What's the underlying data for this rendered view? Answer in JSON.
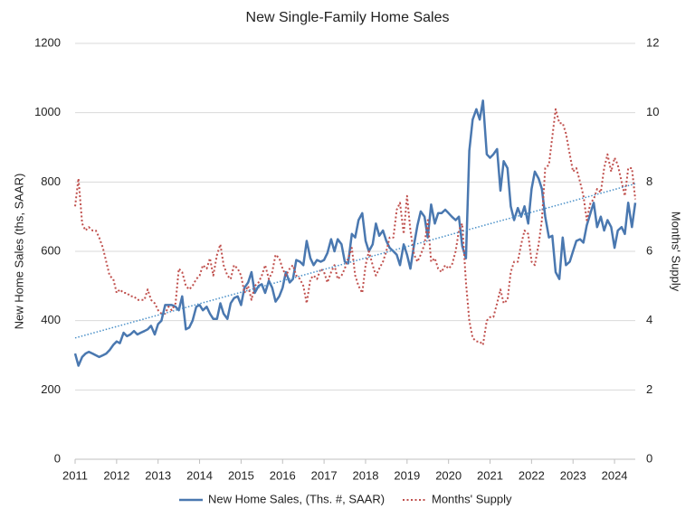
{
  "chart_data": {
    "type": "line",
    "title": "New Single-Family Home Sales",
    "ylabel": "New Home Sales (ths, SAAR)",
    "y2label": "Months' Supply",
    "xlim": [
      2011,
      2024.5
    ],
    "xticks": [
      2011,
      2012,
      2013,
      2014,
      2015,
      2016,
      2017,
      2018,
      2019,
      2020,
      2021,
      2022,
      2023,
      2024
    ],
    "ylim": [
      0,
      1200
    ],
    "yticks": [
      0,
      200,
      400,
      600,
      800,
      1000,
      1200
    ],
    "y2lim": [
      0,
      12
    ],
    "y2ticks": [
      0,
      2,
      4,
      6,
      8,
      10,
      12
    ],
    "grid": true,
    "legend": "bottom",
    "x": [
      2011,
      2011.08,
      2011.17,
      2011.25,
      2011.33,
      2011.42,
      2011.5,
      2011.58,
      2011.67,
      2011.75,
      2011.83,
      2011.92,
      2012,
      2012.08,
      2012.17,
      2012.25,
      2012.33,
      2012.42,
      2012.5,
      2012.58,
      2012.67,
      2012.75,
      2012.83,
      2012.92,
      2013,
      2013.08,
      2013.17,
      2013.25,
      2013.33,
      2013.42,
      2013.5,
      2013.58,
      2013.67,
      2013.75,
      2013.83,
      2013.92,
      2014,
      2014.08,
      2014.17,
      2014.25,
      2014.33,
      2014.42,
      2014.5,
      2014.58,
      2014.67,
      2014.75,
      2014.83,
      2014.92,
      2015,
      2015.08,
      2015.17,
      2015.25,
      2015.33,
      2015.42,
      2015.5,
      2015.58,
      2015.67,
      2015.75,
      2015.83,
      2015.92,
      2016,
      2016.08,
      2016.17,
      2016.25,
      2016.33,
      2016.42,
      2016.5,
      2016.58,
      2016.67,
      2016.75,
      2016.83,
      2016.92,
      2017,
      2017.08,
      2017.17,
      2017.25,
      2017.33,
      2017.42,
      2017.5,
      2017.58,
      2017.67,
      2017.75,
      2017.83,
      2017.92,
      2018,
      2018.08,
      2018.17,
      2018.25,
      2018.33,
      2018.42,
      2018.5,
      2018.58,
      2018.67,
      2018.75,
      2018.83,
      2018.92,
      2019,
      2019.08,
      2019.17,
      2019.25,
      2019.33,
      2019.42,
      2019.5,
      2019.58,
      2019.67,
      2019.75,
      2019.83,
      2019.92,
      2020,
      2020.08,
      2020.17,
      2020.25,
      2020.33,
      2020.42,
      2020.5,
      2020.58,
      2020.67,
      2020.75,
      2020.83,
      2020.92,
      2021,
      2021.08,
      2021.17,
      2021.25,
      2021.33,
      2021.42,
      2021.5,
      2021.58,
      2021.67,
      2021.75,
      2021.83,
      2021.92,
      2022,
      2022.08,
      2022.17,
      2022.25,
      2022.33,
      2022.42,
      2022.5,
      2022.58,
      2022.67,
      2022.75,
      2022.83,
      2022.92,
      2023,
      2023.08,
      2023.17,
      2023.25,
      2023.33,
      2023.42,
      2023.5,
      2023.58,
      2023.67,
      2023.75,
      2023.83,
      2023.92,
      2024,
      2024.08,
      2024.17,
      2024.25,
      2024.33,
      2024.42,
      2024.5
    ],
    "series": [
      {
        "name": "New Home Sales, (Ths. #, SAAR)",
        "color": "#4a78b0",
        "axis": "y",
        "values": [
          305,
          270,
          295,
          305,
          310,
          305,
          300,
          295,
          300,
          305,
          315,
          330,
          340,
          335,
          365,
          355,
          360,
          370,
          360,
          365,
          370,
          375,
          385,
          360,
          390,
          400,
          445,
          445,
          445,
          440,
          430,
          470,
          375,
          380,
          400,
          440,
          445,
          430,
          440,
          420,
          405,
          405,
          450,
          420,
          405,
          450,
          465,
          470,
          445,
          495,
          510,
          540,
          480,
          500,
          505,
          480,
          515,
          495,
          455,
          470,
          495,
          540,
          510,
          520,
          575,
          570,
          560,
          630,
          580,
          560,
          575,
          570,
          575,
          595,
          635,
          600,
          635,
          620,
          570,
          565,
          650,
          640,
          690,
          710,
          630,
          600,
          620,
          680,
          645,
          660,
          630,
          610,
          600,
          590,
          560,
          620,
          590,
          550,
          620,
          675,
          715,
          700,
          640,
          735,
          680,
          710,
          710,
          720,
          710,
          700,
          690,
          700,
          615,
          580,
          890,
          980,
          1010,
          980,
          1035,
          880,
          870,
          880,
          895,
          775,
          860,
          840,
          730,
          690,
          725,
          700,
          730,
          680,
          780,
          830,
          810,
          780,
          700,
          640,
          645,
          540,
          520,
          640,
          560,
          570,
          600,
          630,
          635,
          625,
          675,
          710,
          740,
          670,
          700,
          660,
          690,
          670,
          610,
          660,
          670,
          650,
          740,
          670,
          740
        ]
      },
      {
        "name": "Months' Supply",
        "color": "#c0504d",
        "axis": "y2",
        "values": [
          7.3,
          8.1,
          6.8,
          6.6,
          6.7,
          6.6,
          6.6,
          6.4,
          6.1,
          5.7,
          5.3,
          5.2,
          4.8,
          4.9,
          4.8,
          4.8,
          4.7,
          4.7,
          4.6,
          4.6,
          4.6,
          4.9,
          4.6,
          4.5,
          4.3,
          4.2,
          4.2,
          4.4,
          4.3,
          4.5,
          5.5,
          5.4,
          5.0,
          4.9,
          5.0,
          5.2,
          5.3,
          5.6,
          5.5,
          5.8,
          5.3,
          5.9,
          6.2,
          5.6,
          5.3,
          5.2,
          5.6,
          5.5,
          5.3,
          4.8,
          5.0,
          4.6,
          5.0,
          5.1,
          5.3,
          5.6,
          5.2,
          5.4,
          5.9,
          5.8,
          5.5,
          5.3,
          5.5,
          5.6,
          5.3,
          5.2,
          5.0,
          4.5,
          5.2,
          5.3,
          5.2,
          5.5,
          5.4,
          5.1,
          5.4,
          5.6,
          5.2,
          5.3,
          5.5,
          5.8,
          6.1,
          5.3,
          5.0,
          4.8,
          5.6,
          6.0,
          5.6,
          5.3,
          5.5,
          5.7,
          6.0,
          6.4,
          6.4,
          7.2,
          7.4,
          6.5,
          7.6,
          6.6,
          5.9,
          5.7,
          5.9,
          6.2,
          6.9,
          5.7,
          5.8,
          5.5,
          5.4,
          5.6,
          5.5,
          5.6,
          6.0,
          6.6,
          6.8,
          5.1,
          4.0,
          3.5,
          3.4,
          3.4,
          3.3,
          4.0,
          4.1,
          4.1,
          4.5,
          4.9,
          4.5,
          4.6,
          5.4,
          5.7,
          5.7,
          6.2,
          6.6,
          6.5,
          5.7,
          5.6,
          6.2,
          6.9,
          8.4,
          8.5,
          9.3,
          10.1,
          9.7,
          9.7,
          9.4,
          8.8,
          8.3,
          8.4,
          8.0,
          7.6,
          6.9,
          7.4,
          7.5,
          7.8,
          7.7,
          8.4,
          8.8,
          8.3,
          8.7,
          8.5,
          8.0,
          7.6,
          8.4,
          8.4,
          7.5
        ]
      }
    ],
    "trendline": {
      "color": "#4a90c8",
      "x": [
        2011,
        2024.5
      ],
      "values": [
        350,
        795
      ]
    }
  }
}
